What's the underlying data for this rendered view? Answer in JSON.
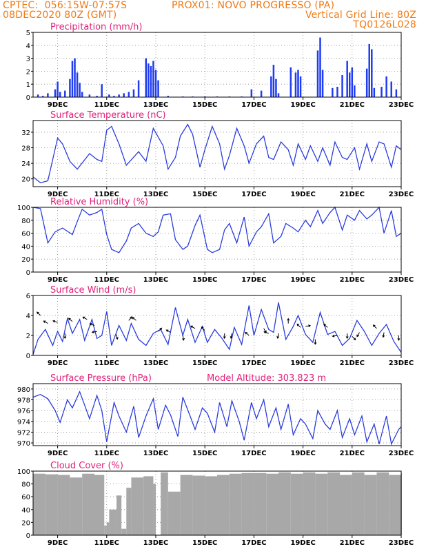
{
  "header": {
    "line1_left": "CPTEC:  056:15W-07:57S",
    "line1_right": "PROX01: NOVO PROGRESSO (PA)",
    "line2_left": "08DEC2020 80Z (GMT)",
    "line2_right": "Vertical Grid Line: 80Z",
    "line3_right": "TQ0126L028"
  },
  "pressure_extra": "Model Altitude: 303.823 m",
  "x_tick_labels": [
    "9DEC",
    "11DEC",
    "13DEC",
    "15DEC",
    "17DEC",
    "19DEC",
    "21DEC",
    "23DEC"
  ],
  "colors": {
    "header": "#f07a14",
    "title": "#e0207a",
    "line": "#2a3cdc",
    "bars": "#1f3cf0",
    "cloud": "#a8a8a8"
  },
  "chart_data": [
    {
      "type": "bar",
      "title": "Precipitation (mm/h)",
      "ylim": [
        0,
        5
      ],
      "yticks": [
        0,
        1,
        2,
        3,
        4,
        5
      ],
      "x": [
        8.2,
        8.4,
        8.6,
        8.9,
        9.0,
        9.1,
        9.3,
        9.5,
        9.6,
        9.7,
        9.8,
        9.9,
        10.0,
        10.3,
        10.6,
        10.8,
        11.1,
        11.3,
        11.5,
        11.7,
        11.9,
        12.1,
        12.3,
        12.6,
        12.7,
        12.8,
        12.9,
        13.0,
        13.1,
        13.5,
        14.1,
        14.5,
        15.0,
        15.5,
        16.0,
        16.5,
        16.9,
        17.3,
        17.7,
        17.8,
        17.9,
        18.0,
        18.5,
        18.7,
        18.8,
        18.9,
        19.6,
        19.7,
        19.8,
        20.2,
        20.4,
        20.6,
        20.8,
        20.9,
        21.0,
        21.1,
        21.6,
        21.7,
        21.8,
        21.9,
        22.2,
        22.4,
        22.6,
        22.8
      ],
      "values": [
        0.2,
        0.1,
        0.3,
        0.6,
        1.2,
        0.4,
        0.5,
        1.4,
        2.8,
        3.0,
        1.9,
        1.1,
        0.4,
        0.2,
        0.1,
        1.0,
        0.2,
        0.1,
        0.2,
        0.3,
        0.4,
        0.6,
        1.3,
        3.0,
        2.6,
        2.4,
        2.8,
        2.1,
        1.3,
        0.1,
        0.05,
        0.05,
        0.05,
        0.05,
        0.05,
        0.05,
        0.6,
        0.5,
        1.6,
        2.5,
        1.4,
        0.3,
        2.3,
        1.9,
        2.1,
        1.6,
        3.6,
        4.6,
        2.1,
        0.7,
        0.8,
        1.7,
        2.8,
        1.9,
        2.3,
        0.9,
        2.2,
        4.1,
        3.7,
        0.7,
        0.8,
        1.6,
        1.2,
        0.6
      ]
    },
    {
      "type": "line",
      "title": "Surface Temperature (nC)",
      "ylim": [
        18,
        35
      ],
      "yticks": [
        20,
        24,
        28,
        32
      ],
      "x": [
        8.0,
        8.3,
        8.6,
        9.0,
        9.2,
        9.5,
        9.8,
        10.3,
        10.6,
        10.8,
        11.0,
        11.2,
        11.5,
        11.8,
        12.3,
        12.6,
        12.9,
        13.3,
        13.5,
        13.8,
        14.0,
        14.3,
        14.5,
        14.8,
        15.0,
        15.3,
        15.6,
        15.8,
        16.0,
        16.3,
        16.6,
        16.8,
        17.1,
        17.4,
        17.6,
        17.8,
        18.1,
        18.4,
        18.6,
        18.8,
        19.1,
        19.3,
        19.6,
        19.8,
        20.1,
        20.3,
        20.6,
        20.8,
        21.1,
        21.3,
        21.6,
        21.8,
        22.1,
        22.3,
        22.6,
        22.8,
        23.0
      ],
      "values": [
        20.5,
        19.0,
        19.5,
        30.5,
        29.0,
        24.5,
        22.5,
        26.5,
        25.0,
        24.5,
        32.5,
        33.5,
        29.0,
        23.5,
        27.0,
        24.5,
        33.0,
        28.5,
        22.5,
        25.5,
        31.0,
        34.0,
        31.5,
        23.0,
        27.5,
        33.5,
        29.0,
        22.5,
        26.0,
        33.0,
        28.5,
        24.0,
        29.0,
        31.0,
        25.5,
        25.0,
        29.5,
        27.5,
        23.5,
        29.0,
        25.0,
        28.5,
        24.5,
        28.0,
        23.5,
        29.5,
        25.5,
        25.0,
        28.0,
        22.5,
        29.0,
        24.5,
        29.5,
        29.0,
        23.0,
        28.5,
        27.5
      ]
    },
    {
      "type": "line",
      "title": "Relative Humidity (%)",
      "ylim": [
        0,
        100
      ],
      "yticks": [
        0,
        20,
        40,
        60,
        80,
        100
      ],
      "x": [
        8.0,
        8.3,
        8.6,
        8.9,
        9.2,
        9.6,
        9.8,
        10.0,
        10.3,
        10.6,
        10.8,
        11.0,
        11.2,
        11.5,
        11.8,
        12.0,
        12.3,
        12.6,
        12.9,
        13.1,
        13.3,
        13.6,
        13.8,
        14.1,
        14.3,
        14.6,
        14.8,
        15.1,
        15.3,
        15.6,
        15.8,
        16.0,
        16.3,
        16.6,
        16.8,
        17.1,
        17.3,
        17.6,
        17.8,
        18.1,
        18.3,
        18.6,
        18.8,
        19.1,
        19.3,
        19.6,
        19.8,
        20.1,
        20.3,
        20.6,
        20.8,
        21.1,
        21.3,
        21.6,
        21.8,
        22.1,
        22.3,
        22.6,
        22.8,
        23.0
      ],
      "values": [
        100,
        98,
        45,
        62,
        68,
        58,
        78,
        97,
        88,
        92,
        97,
        58,
        35,
        30,
        48,
        68,
        75,
        60,
        55,
        62,
        88,
        90,
        50,
        35,
        40,
        72,
        88,
        35,
        30,
        35,
        65,
        75,
        45,
        85,
        40,
        62,
        70,
        90,
        45,
        55,
        75,
        68,
        62,
        80,
        70,
        95,
        75,
        92,
        100,
        65,
        88,
        80,
        95,
        82,
        88,
        100,
        60,
        95,
        55,
        60
      ]
    },
    {
      "type": "line",
      "title": "Surface Wind (m/s)",
      "ylim": [
        0,
        6
      ],
      "yticks": [
        0,
        2,
        4,
        6
      ],
      "x": [
        8.0,
        8.2,
        8.5,
        8.8,
        9.0,
        9.2,
        9.4,
        9.6,
        9.9,
        10.1,
        10.4,
        10.6,
        10.8,
        11.0,
        11.2,
        11.5,
        11.8,
        12.0,
        12.3,
        12.6,
        12.9,
        13.2,
        13.5,
        13.8,
        14.1,
        14.3,
        14.6,
        14.9,
        15.1,
        15.4,
        15.7,
        16.0,
        16.2,
        16.5,
        16.8,
        17.0,
        17.3,
        17.6,
        17.8,
        18.0,
        18.3,
        18.6,
        18.8,
        19.1,
        19.4,
        19.7,
        20.0,
        20.3,
        20.6,
        20.9,
        21.2,
        21.5,
        21.8,
        22.1,
        22.4,
        22.7,
        23.0
      ],
      "values": [
        0.1,
        1.6,
        2.6,
        1.0,
        2.4,
        1.4,
        3.7,
        2.2,
        3.6,
        1.5,
        3.6,
        1.7,
        2.0,
        4.4,
        1.0,
        3.0,
        1.5,
        3.2,
        1.6,
        1.0,
        2.2,
        2.6,
        1.1,
        4.8,
        2.0,
        3.6,
        1.3,
        2.9,
        1.3,
        2.6,
        1.7,
        0.6,
        2.8,
        1.1,
        5.0,
        2.0,
        4.6,
        2.6,
        2.3,
        5.3,
        1.6,
        2.9,
        4.0,
        2.1,
        1.3,
        4.3,
        2.1,
        2.4,
        1.0,
        1.7,
        3.5,
        2.4,
        1.0,
        2.2,
        3.1,
        1.4,
        0.3
      ]
    },
    {
      "type": "line",
      "title": "Surface Pressure (hPa)",
      "ylim": [
        969.5,
        981
      ],
      "yticks": [
        970,
        972,
        974,
        976,
        978,
        980
      ],
      "x": [
        8.0,
        8.3,
        8.6,
        8.9,
        9.1,
        9.4,
        9.6,
        9.9,
        10.1,
        10.3,
        10.6,
        10.8,
        11.0,
        11.3,
        11.5,
        11.8,
        12.1,
        12.3,
        12.6,
        12.9,
        13.1,
        13.4,
        13.6,
        13.9,
        14.1,
        14.4,
        14.6,
        14.9,
        15.1,
        15.4,
        15.6,
        15.9,
        16.1,
        16.4,
        16.6,
        16.9,
        17.1,
        17.4,
        17.6,
        17.9,
        18.1,
        18.4,
        18.6,
        18.9,
        19.1,
        19.4,
        19.6,
        19.9,
        20.1,
        20.4,
        20.6,
        20.9,
        21.1,
        21.4,
        21.6,
        21.9,
        22.1,
        22.4,
        22.6,
        22.9,
        23.0
      ],
      "values": [
        978.5,
        979.0,
        978.2,
        976.0,
        973.8,
        978.0,
        976.5,
        979.5,
        977.0,
        974.5,
        978.8,
        976.0,
        970.2,
        977.5,
        975.0,
        972.0,
        976.8,
        971.0,
        975.0,
        978.2,
        972.5,
        977.0,
        975.2,
        971.2,
        978.5,
        975.0,
        972.5,
        976.5,
        975.5,
        972.0,
        977.5,
        973.0,
        977.8,
        974.0,
        970.5,
        977.5,
        974.5,
        978.0,
        973.0,
        976.5,
        972.5,
        977.2,
        971.5,
        974.5,
        973.5,
        970.8,
        976.0,
        973.5,
        972.5,
        976.0,
        971.0,
        974.5,
        971.5,
        975.0,
        970.2,
        973.5,
        969.8,
        975.0,
        969.8,
        972.5,
        973.0
      ]
    },
    {
      "type": "bar",
      "title": "Cloud Cover (%)",
      "ylim": [
        0,
        100
      ],
      "yticks": [
        0,
        20,
        40,
        60,
        80,
        100
      ],
      "x": [
        8.0,
        8.5,
        9.0,
        9.5,
        10.0,
        10.5,
        10.9,
        11.0,
        11.1,
        11.4,
        11.6,
        11.8,
        12.0,
        12.5,
        12.9,
        13.0,
        13.2,
        13.5,
        14.0,
        14.5,
        15.0,
        15.5,
        16.0,
        16.5,
        17.0,
        17.5,
        18.0,
        18.5,
        19.0,
        19.5,
        20.0,
        20.5,
        21.0,
        21.5,
        22.0,
        22.5,
        23.0
      ],
      "values": [
        96,
        95,
        94,
        90,
        96,
        94,
        15,
        20,
        40,
        62,
        10,
        74,
        90,
        92,
        80,
        0,
        98,
        68,
        94,
        93,
        92,
        94,
        96,
        97,
        97,
        96,
        98,
        96,
        98,
        96,
        98,
        94,
        98,
        94,
        98,
        94,
        97
      ]
    }
  ]
}
